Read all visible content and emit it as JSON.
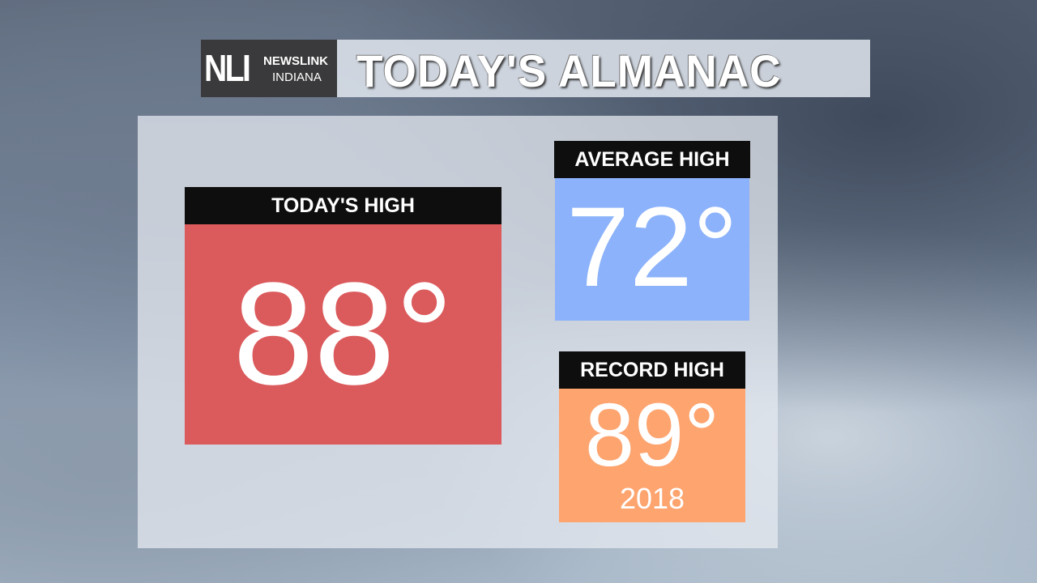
{
  "header": {
    "logo_letters": "NLI",
    "logo_line1": "NEWSLINK",
    "logo_line2": "INDIANA",
    "title": "TODAY'S ALMANAC"
  },
  "today": {
    "label": "TODAY'S HIGH",
    "value": "88°",
    "color": "#db5a5c"
  },
  "average": {
    "label": "AVERAGE HIGH",
    "value": "72°",
    "color": "#8cb2fb"
  },
  "record": {
    "label": "RECORD HIGH",
    "value": "89°",
    "year": "2018",
    "color": "#fda46f"
  }
}
